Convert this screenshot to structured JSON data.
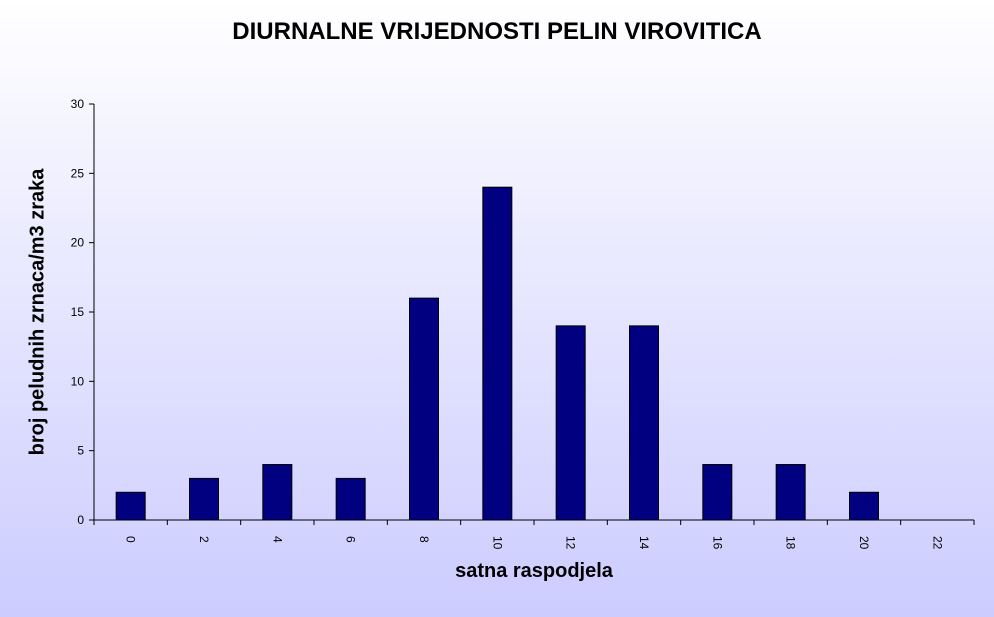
{
  "chart_data": {
    "type": "bar",
    "title": "DIURNALNE VRIJEDNOSTI PELIN VIROVITICA",
    "xlabel": "satna raspodjela",
    "ylabel": "broj peludnih  zrnaca/m3 zraka",
    "categories": [
      "0",
      "2",
      "4",
      "6",
      "8",
      "10",
      "12",
      "14",
      "16",
      "18",
      "20",
      "22"
    ],
    "values": [
      2,
      3,
      4,
      3,
      16,
      24,
      14,
      14,
      4,
      4,
      2,
      0
    ],
    "ylim": [
      0,
      30
    ],
    "yticks": [
      0,
      5,
      10,
      15,
      20,
      25,
      30
    ],
    "grid": false,
    "bar_color": "#000080"
  }
}
